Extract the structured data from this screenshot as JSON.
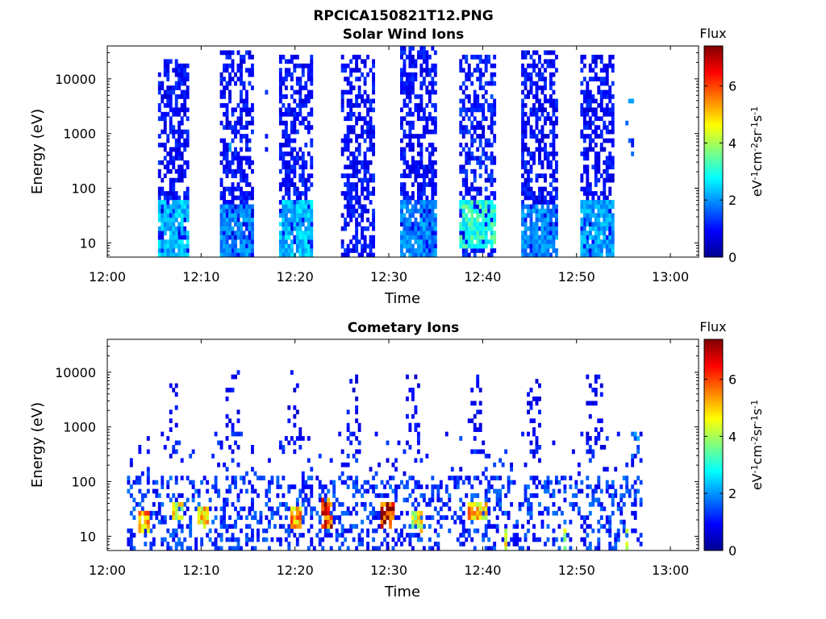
{
  "figure_title": "RPCICA150821T12.PNG",
  "chart_data": [
    {
      "type": "heatmap",
      "title": "Solar Wind Ions",
      "xlabel": "Time",
      "ylabel": "Energy (eV)",
      "x_range": [
        "12:00",
        "13:03"
      ],
      "x_ticks": [
        "12:00",
        "12:10",
        "12:20",
        "12:30",
        "12:40",
        "12:50",
        "13:00"
      ],
      "y_scale": "log",
      "y_range": [
        5.5,
        40000
      ],
      "y_ticks": [
        "10",
        "100",
        "1000",
        "10000"
      ],
      "colorbar": {
        "title": "Flux",
        "label_parts": [
          "eV",
          "-1",
          "cm",
          "-2",
          "sr",
          "-1",
          "s",
          "-1"
        ],
        "range": [
          0,
          7.4
        ],
        "ticks": [
          "0",
          "2",
          "4",
          "6"
        ],
        "colormap": "jet"
      },
      "bursts": [
        {
          "start": 12.0,
          "end": 12.4,
          "min_ev": 400,
          "max_ev": 15000,
          "density": 0.12,
          "level": 1.0
        },
        {
          "start": 12.9,
          "end": 13.15,
          "min_ev": 150,
          "max_ev": 2000,
          "density": 0.15,
          "level": 1.8
        },
        {
          "start": 16.7,
          "end": 16.9,
          "min_ev": 300,
          "max_ev": 10000,
          "density": 0.12,
          "level": 1.2
        },
        {
          "start": 20.2,
          "end": 20.5,
          "min_ev": 6,
          "max_ev": 12000,
          "density": 0.15,
          "level": 1.0
        },
        {
          "start": 55.3,
          "end": 56.3,
          "min_ev": 400,
          "max_ev": 5000,
          "density": 0.18,
          "level": 1.5
        },
        {
          "start": 5.3,
          "end": 8.6,
          "min_ev": 6,
          "max_ev": 22000,
          "density": 0.55,
          "level": 0.9
        },
        {
          "start": 11.9,
          "end": 15.4,
          "min_ev": 6,
          "max_ev": 35000,
          "density": 0.55,
          "level": 0.9
        },
        {
          "start": 18.4,
          "end": 21.8,
          "min_ev": 6,
          "max_ev": 30000,
          "density": 0.55,
          "level": 0.9
        },
        {
          "start": 24.8,
          "end": 28.3,
          "min_ev": 6,
          "max_ev": 30000,
          "density": 0.55,
          "level": 0.9
        },
        {
          "start": 31.2,
          "end": 34.8,
          "min_ev": 6,
          "max_ev": 38000,
          "density": 0.55,
          "level": 0.9
        },
        {
          "start": 37.6,
          "end": 41.2,
          "min_ev": 6,
          "max_ev": 30000,
          "density": 0.55,
          "level": 1.0
        },
        {
          "start": 44.0,
          "end": 47.6,
          "min_ev": 6,
          "max_ev": 35000,
          "density": 0.55,
          "level": 0.9
        },
        {
          "start": 50.4,
          "end": 53.8,
          "min_ev": 6,
          "max_ev": 30000,
          "density": 0.55,
          "level": 0.9
        }
      ],
      "hotspots": [
        {
          "start": 5.5,
          "end": 8.6,
          "min_ev": 6,
          "max_ev": 60,
          "level": 2.4
        },
        {
          "start": 11.9,
          "end": 15.4,
          "min_ev": 6,
          "max_ev": 50,
          "level": 2.0
        },
        {
          "start": 18.4,
          "end": 21.8,
          "min_ev": 6,
          "max_ev": 60,
          "level": 2.4
        },
        {
          "start": 31.2,
          "end": 34.8,
          "min_ev": 6,
          "max_ev": 60,
          "level": 2.0
        },
        {
          "start": 37.6,
          "end": 41.2,
          "min_ev": 8,
          "max_ev": 60,
          "level": 3.2
        },
        {
          "start": 44.0,
          "end": 47.6,
          "min_ev": 6,
          "max_ev": 50,
          "level": 2.0
        },
        {
          "start": 50.4,
          "end": 53.8,
          "min_ev": 6,
          "max_ev": 60,
          "level": 2.2
        }
      ]
    },
    {
      "type": "heatmap",
      "title": "Cometary Ions",
      "xlabel": "Time",
      "ylabel": "Energy (eV)",
      "x_range": [
        "12:00",
        "13:03"
      ],
      "x_ticks": [
        "12:00",
        "12:10",
        "12:20",
        "12:30",
        "12:40",
        "12:50",
        "13:00"
      ],
      "y_scale": "log",
      "y_range": [
        5.5,
        40000
      ],
      "y_ticks": [
        "10",
        "100",
        "1000",
        "10000"
      ],
      "colorbar": {
        "title": "Flux",
        "label_parts": [
          "eV",
          "-1",
          "cm",
          "-2",
          "sr",
          "-1",
          "s",
          "-1"
        ],
        "range": [
          0,
          7.4
        ],
        "ticks": [
          "0",
          "2",
          "4",
          "6"
        ],
        "colormap": "jet"
      },
      "bursts": [
        {
          "start": 2.0,
          "end": 56.8,
          "min_ev": 6,
          "max_ev": 120,
          "density": 0.32,
          "level": 1.2
        },
        {
          "start": 2.0,
          "end": 56.8,
          "min_ev": 120,
          "max_ev": 800,
          "density": 0.07,
          "level": 1.0
        },
        {
          "start": 6.3,
          "end": 7.3,
          "min_ev": 300,
          "max_ev": 10000,
          "density": 0.2,
          "level": 0.8
        },
        {
          "start": 12.5,
          "end": 13.8,
          "min_ev": 300,
          "max_ev": 10000,
          "density": 0.18,
          "level": 0.8
        },
        {
          "start": 19.2,
          "end": 20.6,
          "min_ev": 300,
          "max_ev": 10000,
          "density": 0.2,
          "level": 0.8
        },
        {
          "start": 25.4,
          "end": 26.7,
          "min_ev": 300,
          "max_ev": 9000,
          "density": 0.2,
          "level": 0.8
        },
        {
          "start": 31.8,
          "end": 33.2,
          "min_ev": 300,
          "max_ev": 9000,
          "density": 0.2,
          "level": 0.8
        },
        {
          "start": 38.3,
          "end": 39.6,
          "min_ev": 300,
          "max_ev": 9000,
          "density": 0.2,
          "level": 0.8
        },
        {
          "start": 44.6,
          "end": 46.0,
          "min_ev": 300,
          "max_ev": 8000,
          "density": 0.18,
          "level": 0.8
        },
        {
          "start": 51.0,
          "end": 52.6,
          "min_ev": 300,
          "max_ev": 9000,
          "density": 0.2,
          "level": 0.8
        },
        {
          "start": 55.2,
          "end": 56.5,
          "min_ev": 200,
          "max_ev": 1000,
          "density": 0.15,
          "level": 1.6
        }
      ],
      "hotspots": [
        {
          "start": 3.4,
          "end": 4.6,
          "min_ev": 12,
          "max_ev": 28,
          "level": 5.4
        },
        {
          "start": 6.8,
          "end": 7.8,
          "min_ev": 20,
          "max_ev": 45,
          "level": 4.6
        },
        {
          "start": 9.7,
          "end": 10.8,
          "min_ev": 14,
          "max_ev": 32,
          "level": 5.0
        },
        {
          "start": 19.4,
          "end": 20.4,
          "min_ev": 14,
          "max_ev": 32,
          "level": 5.4
        },
        {
          "start": 22.7,
          "end": 23.9,
          "min_ev": 15,
          "max_ev": 55,
          "level": 6.6
        },
        {
          "start": 29.0,
          "end": 30.3,
          "min_ev": 14,
          "max_ev": 40,
          "level": 6.9
        },
        {
          "start": 32.4,
          "end": 33.3,
          "min_ev": 12,
          "max_ev": 28,
          "level": 4.6
        },
        {
          "start": 38.3,
          "end": 40.2,
          "min_ev": 22,
          "max_ev": 45,
          "level": 5.2
        },
        {
          "start": 42.2,
          "end": 42.5,
          "min_ev": 6,
          "max_ev": 15,
          "level": 4.6
        },
        {
          "start": 48.6,
          "end": 48.9,
          "min_ev": 6,
          "max_ev": 15,
          "level": 4.4
        },
        {
          "start": 55.1,
          "end": 55.4,
          "min_ev": 6,
          "max_ev": 15,
          "level": 5.0
        }
      ]
    }
  ]
}
